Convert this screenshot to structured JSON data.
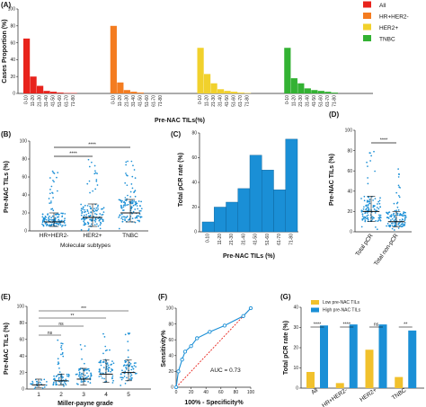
{
  "panels": {
    "A": "(A)",
    "B": "(B)",
    "C": "(C)",
    "D": "(D)",
    "E": "(E)",
    "F": "(F)",
    "G": "(G)"
  },
  "chart_data": [
    {
      "panel": "A",
      "type": "bar",
      "xlabel": "Pre-NAC TILs(%)",
      "ylabel": "Cases Proportion (%)",
      "ylim": [
        0,
        100
      ],
      "yticks": [
        0,
        20,
        40,
        60,
        80,
        100
      ],
      "categories": [
        "0-10",
        "11-20",
        "21-30",
        "31-40",
        "41-50",
        "51-60",
        "61-70",
        "71-80"
      ],
      "legend": "top-right",
      "series": [
        {
          "name": "All",
          "color": "#e8231c",
          "values": [
            65,
            20,
            9,
            3,
            2,
            1,
            0.5,
            0.5
          ]
        },
        {
          "name": "HR+HER2-",
          "color": "#f47c20",
          "values": [
            80,
            13,
            4,
            2,
            1,
            0,
            0,
            0
          ]
        },
        {
          "name": "HER2+",
          "color": "#f1d12c",
          "values": [
            54,
            23,
            12,
            5,
            3,
            2,
            1,
            0.5
          ]
        },
        {
          "name": "TNBC",
          "color": "#33b233",
          "values": [
            54,
            18,
            12,
            6,
            4,
            3,
            2,
            1
          ]
        }
      ]
    },
    {
      "panel": "B",
      "type": "scatter",
      "xlabel": "Molecular subtypes",
      "ylabel": "Pre-NAC TILs (%)",
      "ylim": [
        0,
        100
      ],
      "yticks": [
        0,
        20,
        40,
        60,
        80,
        100
      ],
      "categories": [
        "HR+HER2-",
        "HER2+",
        "TNBC"
      ],
      "medians": [
        10,
        15,
        20
      ],
      "spreads": [
        [
          5,
          20
        ],
        [
          5,
          30
        ],
        [
          10,
          35
        ]
      ],
      "maxima": [
        70,
        80,
        80
      ],
      "significance": [
        {
          "groups": [
            0,
            1
          ],
          "label": "****"
        },
        {
          "groups": [
            0,
            2
          ],
          "label": "****"
        }
      ]
    },
    {
      "panel": "C",
      "type": "bar",
      "xlabel": "Pre-NAC TILs (%)",
      "ylabel": "Total pCR rate (%)",
      "ylim": [
        0,
        80
      ],
      "yticks": [
        0,
        20,
        40,
        60,
        80
      ],
      "categories": [
        "0-10",
        "11-20",
        "21-30",
        "31-40",
        "41-50",
        "51-60",
        "61-70",
        "71-80"
      ],
      "values": [
        8,
        20,
        24,
        35,
        62,
        50,
        34,
        75
      ],
      "color": "#1a8fd6"
    },
    {
      "panel": "D",
      "type": "scatter",
      "ylabel": "Pre-NAC TILs (%)",
      "ylim": [
        0,
        100
      ],
      "yticks": [
        0,
        20,
        40,
        60,
        80,
        100
      ],
      "categories": [
        "Total pCR",
        "Total non-pCR"
      ],
      "medians": [
        20,
        10
      ],
      "spreads": [
        [
          10,
          35
        ],
        [
          5,
          20
        ]
      ],
      "maxima": [
        80,
        70
      ],
      "significance": [
        {
          "groups": [
            0,
            1
          ],
          "label": "****"
        }
      ]
    },
    {
      "panel": "E",
      "type": "scatter",
      "xlabel": "Miller-payne grade",
      "ylabel": "Pre-NAC TILs (%)",
      "ylim": [
        0,
        100
      ],
      "yticks": [
        0,
        20,
        40,
        60,
        80,
        100
      ],
      "categories": [
        "1",
        "2",
        "3",
        "4",
        "5"
      ],
      "medians": [
        5,
        10,
        12,
        18,
        20
      ],
      "spreads": [
        [
          2,
          12
        ],
        [
          5,
          18
        ],
        [
          5,
          25
        ],
        [
          8,
          35
        ],
        [
          10,
          35
        ]
      ],
      "maxima": [
        25,
        60,
        65,
        70,
        75
      ],
      "significance": [
        {
          "groups": [
            0,
            1
          ],
          "label": "ns"
        },
        {
          "groups": [
            0,
            2
          ],
          "label": "ns"
        },
        {
          "groups": [
            0,
            3
          ],
          "label": "**"
        },
        {
          "groups": [
            0,
            4
          ],
          "label": "***"
        }
      ]
    },
    {
      "panel": "F",
      "type": "line",
      "xlabel": "100% - Specificity%",
      "ylabel": "Sensitivity%",
      "xlim": [
        0,
        100
      ],
      "ylim": [
        0,
        100
      ],
      "xticks": [
        0,
        20,
        40,
        60,
        80,
        100
      ],
      "yticks": [
        0,
        20,
        40,
        60,
        80,
        100
      ],
      "x": [
        0,
        3,
        8,
        12,
        20,
        28,
        45,
        65,
        90,
        100
      ],
      "y": [
        0,
        20,
        35,
        45,
        52,
        62,
        70,
        78,
        90,
        100
      ],
      "annotation": "AUC = 0.73",
      "line_color": "#1a8fd6",
      "diag_color": "#e8231c"
    },
    {
      "panel": "G",
      "type": "bar",
      "ylabel": "Total pCR rate (%)",
      "ylim": [
        0,
        40
      ],
      "yticks": [
        0,
        10,
        20,
        30,
        40
      ],
      "categories": [
        "All",
        "HR+HER2-",
        "HER2+",
        "TNBC"
      ],
      "legend": "top-left",
      "series": [
        {
          "name": "Low pre-NAC TILs",
          "color": "#f1c12c",
          "values": [
            8,
            2.5,
            19,
            5.5
          ]
        },
        {
          "name": "High pre-NAC TILs",
          "color": "#1a8fd6",
          "values": [
            31,
            31.5,
            31.5,
            28.5
          ]
        }
      ],
      "significance": [
        "****",
        "****",
        "ns",
        "**"
      ]
    }
  ]
}
